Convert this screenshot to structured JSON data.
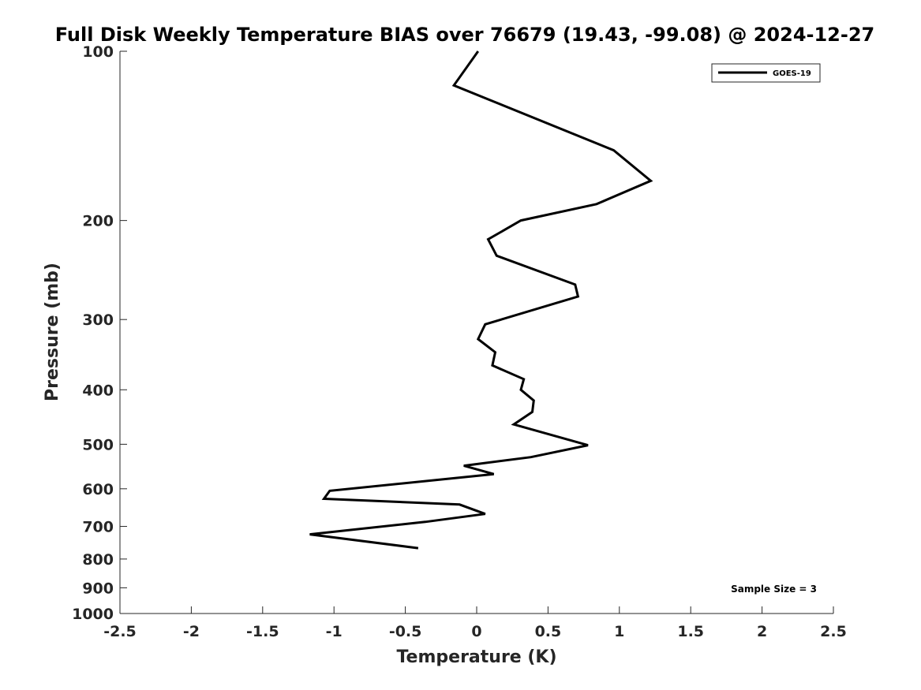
{
  "chart_data": {
    "type": "line",
    "title": "Full Disk Weekly Temperature BIAS over 76679 (19.43, -99.08) @ 2024-12-27",
    "xlabel": "Temperature (K)",
    "ylabel": "Pressure (mb)",
    "xlim": [
      -2.5,
      2.5
    ],
    "ylim": [
      100,
      1000
    ],
    "y_scale": "log",
    "y_reversed": true,
    "grid": false,
    "x_ticks": [
      -2.5,
      -2,
      -1.5,
      -1,
      -0.5,
      0,
      0.5,
      1,
      1.5,
      2,
      2.5
    ],
    "x_tick_labels": [
      "-2.5",
      "-2",
      "-1.5",
      "-1",
      "-0.5",
      "0",
      "0.5",
      "1",
      "1.5",
      "2",
      "2.5"
    ],
    "y_ticks": [
      100,
      200,
      300,
      400,
      500,
      600,
      700,
      800,
      900,
      1000
    ],
    "y_tick_labels": [
      "100",
      "200",
      "300",
      "400",
      "500",
      "600",
      "700",
      "800",
      "900",
      "1000"
    ],
    "legend_position": "top-right",
    "series": [
      {
        "name": "GOES-19",
        "color": "#000000",
        "x": [
          0.01,
          -0.16,
          0.96,
          1.22,
          0.84,
          0.31,
          0.08,
          0.14,
          0.69,
          0.71,
          0.06,
          0.01,
          0.13,
          0.11,
          0.33,
          0.31,
          0.4,
          0.39,
          0.26,
          0.78,
          0.38,
          -0.09,
          0.12,
          -1.03,
          -1.07,
          -0.12,
          0.06,
          -0.36,
          -1.17,
          -0.41
        ],
        "y": [
          100,
          115,
          150,
          170,
          187,
          200,
          216,
          231,
          260,
          273,
          306,
          325,
          343,
          362,
          383,
          400,
          418,
          438,
          461,
          502,
          527,
          546,
          565,
          605,
          625,
          640,
          665,
          687,
          723,
          765
        ]
      }
    ],
    "annotations": [
      {
        "text": "Sample Size = 3"
      }
    ]
  }
}
